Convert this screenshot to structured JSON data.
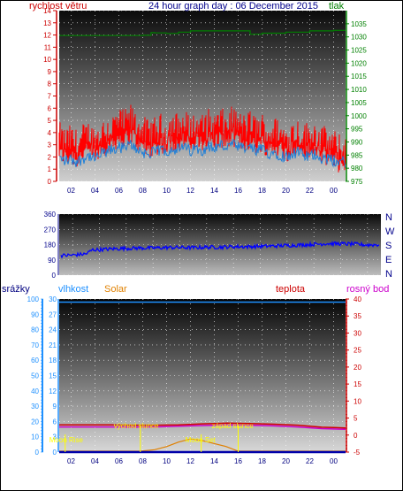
{
  "colors": {
    "wind_gust": "#ff0000",
    "wind_avg": "#1e7fd8",
    "pressure": "#008000",
    "direction": "#0000ff",
    "humidity": "#1e90ff",
    "temperature": "#cc0000",
    "dewpoint": "#cc00cc",
    "solar": "#e08000",
    "rain": "#0000aa",
    "sun_markers": "#ffff00"
  },
  "chart_data": [
    {
      "type": "line",
      "title": "24 hour graph day : 06 December 2015",
      "left_axis_label": "rychlost větru",
      "right_axis_label": "tlak",
      "ylim_left": [
        0,
        14
      ],
      "ylim_right": [
        975,
        1040
      ],
      "left_ticks": [
        "0",
        "1",
        "2",
        "3",
        "4",
        "5",
        "6",
        "7",
        "8",
        "9",
        "10",
        "11",
        "12",
        "13",
        "14"
      ],
      "right_ticks": [
        "975",
        "980",
        "985",
        "990",
        "995",
        "1000",
        "1005",
        "1010",
        "1015",
        "1020",
        "1025",
        "1030",
        "1035"
      ],
      "x_ticks": [
        "02",
        "04",
        "06",
        "08",
        "10",
        "12",
        "14",
        "16",
        "18",
        "20",
        "22",
        "00"
      ],
      "xlim_hours": [
        1,
        25
      ],
      "series": [
        {
          "key": "wind_gust",
          "x": [
            1,
            1.5,
            2,
            2.5,
            3,
            3.5,
            4,
            4.5,
            5,
            5.5,
            6,
            6.5,
            7,
            7.5,
            8,
            8.5,
            9,
            9.5,
            10,
            10.5,
            11,
            11.5,
            12,
            12.5,
            13,
            13.5,
            14,
            14.5,
            15,
            15.5,
            16,
            16.5,
            17,
            17.5,
            18,
            18.5,
            19,
            19.5,
            20,
            20.5,
            21,
            21.5,
            22,
            22.5,
            23,
            23.5,
            24,
            24.5
          ],
          "values": [
            3.6,
            3.2,
            3.4,
            3.0,
            3.5,
            3.8,
            3.3,
            3.9,
            4.2,
            4.4,
            4.8,
            4.6,
            5.1,
            4.5,
            4.1,
            3.8,
            4.0,
            4.3,
            4.1,
            4.5,
            4.4,
            4.6,
            4.2,
            4.5,
            4.3,
            4.7,
            4.4,
            4.8,
            4.5,
            4.9,
            4.6,
            4.3,
            4.6,
            4.2,
            4.4,
            3.9,
            4.1,
            3.8,
            3.5,
            3.9,
            4.0,
            3.7,
            3.6,
            3.9,
            3.4,
            3.2,
            3.0,
            2.6
          ]
        },
        {
          "key": "wind_avg",
          "x": [
            1,
            1.5,
            2,
            2.5,
            3,
            3.5,
            4,
            4.5,
            5,
            5.5,
            6,
            6.5,
            7,
            7.5,
            8,
            8.5,
            9,
            9.5,
            10,
            10.5,
            11,
            11.5,
            12,
            12.5,
            13,
            13.5,
            14,
            14.5,
            15,
            15.5,
            16,
            16.5,
            17,
            17.5,
            18,
            18.5,
            19,
            19.5,
            20,
            20.5,
            21,
            21.5,
            22,
            22.5,
            23,
            23.5,
            24,
            24.5
          ],
          "values": [
            1.9,
            1.7,
            1.8,
            1.6,
            1.9,
            2.1,
            1.8,
            2.2,
            2.4,
            2.6,
            2.8,
            2.7,
            3.0,
            2.7,
            2.4,
            2.2,
            2.4,
            2.6,
            2.5,
            2.7,
            2.6,
            2.8,
            2.5,
            2.7,
            2.6,
            2.9,
            2.7,
            3.0,
            2.8,
            3.0,
            2.8,
            2.6,
            2.8,
            2.5,
            2.6,
            2.3,
            2.4,
            2.2,
            2.0,
            2.3,
            2.4,
            2.1,
            2.0,
            2.3,
            1.9,
            1.8,
            1.7,
            1.6
          ]
        },
        {
          "key": "pressure",
          "x": [
            1,
            5,
            8,
            8.7,
            9,
            10,
            11,
            12,
            14,
            16,
            17,
            18,
            20,
            22,
            23,
            24,
            25
          ],
          "values": [
            1030.5,
            1030.5,
            1030.6,
            1031.6,
            1031.5,
            1031.3,
            1031.8,
            1032.3,
            1032.3,
            1032.3,
            1031.0,
            1031.4,
            1031.8,
            1032.3,
            1032.3,
            1032.5,
            1032.5
          ]
        }
      ]
    },
    {
      "type": "scatter",
      "ylim": [
        0,
        360
      ],
      "y_ticks": [
        "0",
        "90",
        "180",
        "270",
        "360"
      ],
      "compass_labels": [
        "N",
        "W",
        "S",
        "E",
        "N"
      ],
      "xlim_hours": [
        1,
        25
      ],
      "series": [
        {
          "key": "direction",
          "x": [
            1,
            2,
            3,
            3.5,
            4,
            5,
            6,
            7,
            8,
            9,
            10,
            11,
            12,
            13,
            14,
            15,
            16,
            17,
            18,
            19,
            20,
            21,
            22,
            23,
            24,
            25
          ],
          "values": [
            115,
            118,
            125,
            150,
            150,
            155,
            158,
            160,
            160,
            163,
            163,
            162,
            165,
            165,
            168,
            168,
            170,
            172,
            175,
            178,
            182,
            186,
            185,
            183,
            178,
            180
          ]
        }
      ]
    },
    {
      "type": "line",
      "headers": {
        "rain": "srážky",
        "humidity": "vlhkost",
        "solar": "Solar",
        "temperature": "teplota",
        "dewpoint": "rosný bod"
      },
      "ylim_humidity": [
        0,
        100
      ],
      "ylim_rain": [
        0,
        30
      ],
      "ylim_temperature": [
        -5,
        40
      ],
      "humidity_ticks": [
        "0",
        "10",
        "20",
        "30",
        "40",
        "50",
        "60",
        "70",
        "80",
        "90",
        "100"
      ],
      "rain_ticks": [
        "0",
        "3",
        "6",
        "9",
        "12",
        "15",
        "18",
        "21",
        "24",
        "27",
        "30"
      ],
      "temperature_ticks": [
        "-5",
        "0",
        "5",
        "10",
        "15",
        "20",
        "25",
        "30",
        "35",
        "40"
      ],
      "x_ticks": [
        "02",
        "04",
        "06",
        "08",
        "10",
        "12",
        "14",
        "16",
        "18",
        "20",
        "22",
        "00"
      ],
      "xlim_hours": [
        1,
        25
      ],
      "annotations": [
        {
          "text": "východ slunce",
          "hour": 7.8
        },
        {
          "text": "západ slunce",
          "hour": 16.0
        },
        {
          "text": "Moon Rise",
          "hour": 1.5
        },
        {
          "text": "Moon Set",
          "hour": 12.9
        }
      ],
      "series": [
        {
          "key": "humidity",
          "x": [
            1,
            25
          ],
          "values": [
            98,
            98
          ]
        },
        {
          "key": "temperature",
          "x": [
            1,
            5,
            7,
            9,
            11,
            13,
            15,
            17,
            19,
            21,
            23,
            25
          ],
          "values": [
            3.0,
            3.0,
            2.9,
            2.9,
            3.0,
            3.3,
            3.5,
            3.4,
            3.2,
            2.9,
            2.3,
            2.1
          ]
        },
        {
          "key": "dewpoint",
          "x": [
            1,
            5,
            7,
            9,
            11,
            13,
            15,
            17,
            19,
            21,
            23,
            25
          ],
          "values": [
            2.4,
            2.4,
            2.3,
            2.4,
            2.6,
            2.8,
            3.0,
            2.9,
            2.7,
            2.4,
            1.9,
            1.7
          ]
        },
        {
          "key": "solar",
          "x": [
            1,
            7.8,
            9,
            10,
            11,
            12,
            13,
            14,
            15,
            16,
            25
          ],
          "values": [
            0,
            0,
            1,
            3,
            6,
            8,
            7,
            5,
            3,
            0,
            0
          ]
        },
        {
          "key": "rain",
          "x": [
            1,
            25
          ],
          "values": [
            0,
            0
          ]
        }
      ]
    }
  ]
}
